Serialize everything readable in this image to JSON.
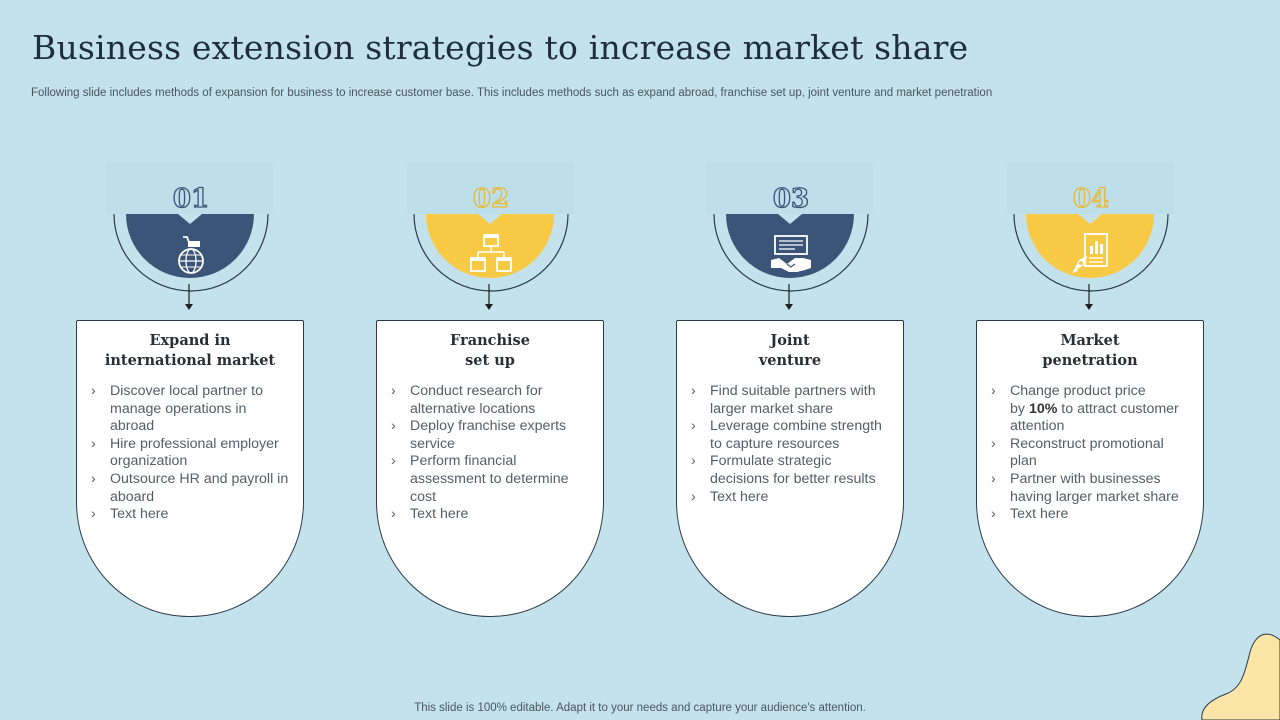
{
  "title": "Business extension strategies to increase market share",
  "subtitle": "Following slide includes methods of expansion for business to increase customer base. This includes methods such as expand abroad, franchise set up, joint venture and market penetration",
  "footer": "This slide is 100% editable. Adapt it to your needs and capture your audience's attention.",
  "colors": {
    "background": "#c3e2eb",
    "navy": "#3a5577",
    "yellow": "#f8c945",
    "blob": "#fbe6a8"
  },
  "columns": [
    {
      "number": "01",
      "icon": "globe-cart-icon",
      "title": "Expand in\ninternational market",
      "bullets": [
        "Discover local partner to manage operations in abroad",
        "Hire professional employer organization",
        "Outsource HR and payroll in aboard",
        "Text here"
      ]
    },
    {
      "number": "02",
      "icon": "franchise-stores-icon",
      "title": "Franchise\nset up",
      "bullets": [
        "Conduct research for alternative locations",
        "Deploy franchise experts service",
        "Perform financial assessment to determine cost",
        "Text here"
      ]
    },
    {
      "number": "03",
      "icon": "handshake-contract-icon",
      "title": "Joint\nventure",
      "bullets": [
        "Find suitable partners with larger market share",
        "Leverage combine strength to capture resources",
        "Formulate strategic decisions for better results",
        "Text here"
      ]
    },
    {
      "number": "04",
      "icon": "rocket-report-icon",
      "title": "Market\npenetration",
      "bullets": [
        "Change product price",
        "by",
        "10%",
        "to attract customer attention",
        "Reconstruct promotional plan",
        "Partner with businesses having larger market share",
        "Text here"
      ]
    }
  ]
}
